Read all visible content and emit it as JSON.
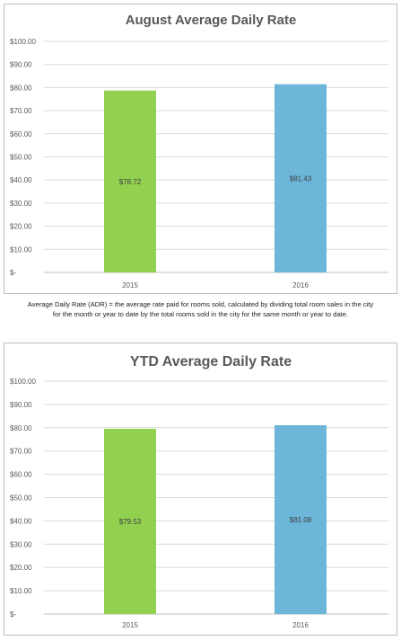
{
  "chart_data": [
    {
      "type": "bar",
      "title": "August Average Daily Rate",
      "categories": [
        "2015",
        "2016"
      ],
      "values": [
        78.72,
        81.43
      ],
      "data_labels": [
        "$78.72",
        "$81.43"
      ],
      "bar_colors": [
        "#92d050",
        "#6cb6d9"
      ],
      "ylim": [
        0,
        100
      ],
      "yticks": [
        0,
        10,
        20,
        30,
        40,
        50,
        60,
        70,
        80,
        90,
        100
      ],
      "ytick_labels": [
        "$-",
        "$10.00",
        "$20.00",
        "$30.00",
        "$40.00",
        "$50.00",
        "$60.00",
        "$70.00",
        "$80.00",
        "$90.00",
        "$100.00"
      ],
      "grid": true,
      "xlabel": "",
      "ylabel": ""
    },
    {
      "type": "bar",
      "title": "YTD Average Daily Rate",
      "categories": [
        "2015",
        "2016"
      ],
      "values": [
        79.53,
        81.08
      ],
      "data_labels": [
        "$79.53",
        "$81.08"
      ],
      "bar_colors": [
        "#92d050",
        "#6cb6d9"
      ],
      "ylim": [
        0,
        100
      ],
      "yticks": [
        0,
        10,
        20,
        30,
        40,
        50,
        60,
        70,
        80,
        90,
        100
      ],
      "ytick_labels": [
        "$-",
        "$10.00",
        "$20.00",
        "$30.00",
        "$40.00",
        "$50.00",
        "$60.00",
        "$70.00",
        "$80.00",
        "$90.00",
        "$100.00"
      ],
      "grid": true,
      "xlabel": "",
      "ylabel": ""
    }
  ],
  "note": {
    "line1": "Average Daily Rate (ADR) = the average rate paid for rooms sold, calculated by dividing total room sales in the city",
    "line2": "for the month or year to date by the total rooms sold in the city for the same month or year to date."
  },
  "colors": {
    "grid": "#d9d9d9",
    "axis": "#bfbfbf",
    "title": "#595959"
  }
}
